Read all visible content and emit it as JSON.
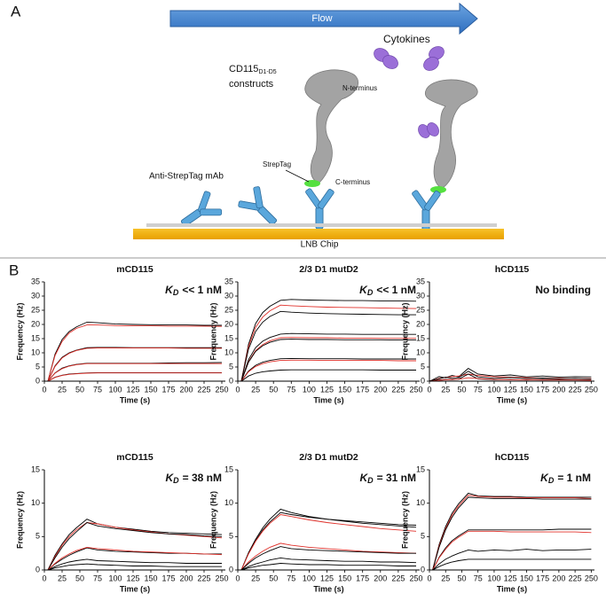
{
  "diagram": {
    "panel_a": "A",
    "panel_b": "B",
    "flow": "Flow",
    "cytokines": "Cytokines",
    "construct_name": "CD115",
    "construct_sub": "D1-D5",
    "constructs": "constructs",
    "n_terminus": "N-terminus",
    "streptag": "StrepTag",
    "c_terminus": "C-terminus",
    "antibody": "Anti-StrepTag mAb",
    "chip": "LNB Chip"
  },
  "chart_data": [
    {
      "type": "line",
      "title": "mCD115",
      "annotation": {
        "symbol": "K",
        "subscript": "D",
        "text": "<< 1 nM"
      },
      "xlabel": "Time (s)",
      "ylabel": "Frequency (Hz)",
      "x": [
        0,
        5,
        15,
        25,
        35,
        45,
        60,
        75,
        100,
        125,
        150,
        175,
        200,
        225,
        250
      ],
      "xlim": [
        0,
        255
      ],
      "xticks": [
        0,
        25,
        50,
        75,
        100,
        125,
        150,
        175,
        200,
        225,
        250
      ],
      "ylim": [
        0,
        35
      ],
      "yticks": [
        0,
        5,
        10,
        15,
        20,
        25,
        30,
        35
      ],
      "series": [
        {
          "color": "#000000",
          "values": [
            0,
            0,
            9.5,
            14.7,
            17.5,
            19.1,
            20.8,
            20.6,
            20.2,
            20,
            19.9,
            19.8,
            19.8,
            19.7,
            19.7
          ]
        },
        {
          "color": "#e0302a",
          "values": [
            0,
            0,
            9,
            14,
            17,
            18.6,
            19.8,
            19.8,
            19.6,
            19.5,
            19.5,
            19.4,
            19.4,
            19.4,
            19.3
          ]
        },
        {
          "color": "#000000",
          "values": [
            0,
            0,
            5.4,
            8.4,
            10,
            10.9,
            11.8,
            11.9,
            11.9,
            11.8,
            11.8,
            11.8,
            11.8,
            11.8,
            11.8
          ]
        },
        {
          "color": "#e0302a",
          "values": [
            0,
            0,
            5.2,
            8.2,
            9.8,
            10.8,
            11.6,
            11.7,
            11.7,
            11.7,
            11.7,
            11.7,
            11.6,
            11.6,
            11.6
          ]
        },
        {
          "color": "#000000",
          "values": [
            0,
            0,
            2.9,
            4.6,
            5.4,
            5.9,
            6.3,
            6.3,
            6.3,
            6.3,
            6.3,
            6.4,
            6.5,
            6.5,
            6.6
          ]
        },
        {
          "color": "#e0302a",
          "values": [
            0,
            0,
            2.8,
            4.4,
            5.3,
            5.8,
            6.2,
            6.2,
            6.2,
            6.2,
            6.2,
            6.2,
            6.2,
            6.2,
            6.2
          ]
        },
        {
          "color": "#000000",
          "values": [
            0,
            0,
            1.4,
            2.1,
            2.5,
            2.7,
            2.9,
            3,
            3,
            3,
            3,
            3,
            3,
            3,
            3
          ]
        },
        {
          "color": "#e0302a",
          "values": [
            0,
            0,
            1.3,
            2,
            2.4,
            2.6,
            2.8,
            2.9,
            2.9,
            2.9,
            2.9,
            2.9,
            2.9,
            2.9,
            2.9
          ]
        }
      ]
    },
    {
      "type": "line",
      "title": "2/3 D1 mutD2",
      "annotation": {
        "symbol": "K",
        "subscript": "D",
        "text": "<< 1 nM"
      },
      "xlabel": "Time (s)",
      "ylabel": "Frequency (Hz)",
      "x": [
        0,
        5,
        15,
        25,
        35,
        45,
        60,
        75,
        100,
        125,
        150,
        175,
        200,
        225,
        250
      ],
      "xlim": [
        0,
        255
      ],
      "xticks": [
        0,
        25,
        50,
        75,
        100,
        125,
        150,
        175,
        200,
        225,
        250
      ],
      "ylim": [
        0,
        35
      ],
      "yticks": [
        0,
        5,
        10,
        15,
        20,
        25,
        30,
        35
      ],
      "series": [
        {
          "color": "#000000",
          "values": [
            0,
            0,
            13,
            20.3,
            24.2,
            26.4,
            28.5,
            28.8,
            28.6,
            28.5,
            28.4,
            28.4,
            28.3,
            28.3,
            28.2
          ]
        },
        {
          "color": "#e0302a",
          "values": [
            0,
            0,
            12.2,
            19,
            22.6,
            24.8,
            26.8,
            26.6,
            26.3,
            26.1,
            26,
            25.9,
            25.8,
            25.7,
            25.6
          ]
        },
        {
          "color": "#000000",
          "values": [
            0,
            0,
            11.3,
            17.5,
            20.8,
            22.8,
            24.6,
            24.3,
            24,
            23.8,
            23.7,
            23.6,
            23.5,
            23.4,
            23.4
          ]
        },
        {
          "color": "#000000",
          "values": [
            0,
            0,
            7.6,
            11.8,
            14.1,
            15.4,
            16.6,
            16.8,
            16.7,
            16.6,
            16.6,
            16.5,
            16.5,
            16.5,
            16.5
          ]
        },
        {
          "color": "#e0302a",
          "values": [
            0,
            0,
            6.9,
            10.8,
            12.9,
            14.2,
            15.3,
            15.4,
            15.3,
            15.3,
            15.2,
            15.2,
            15.1,
            15.1,
            15.1
          ]
        },
        {
          "color": "#000000",
          "values": [
            0,
            0,
            6.7,
            10.5,
            12.5,
            13.7,
            14.7,
            14.8,
            14.7,
            14.7,
            14.6,
            14.6,
            14.6,
            14.5,
            14.5
          ]
        },
        {
          "color": "#000000",
          "values": [
            0,
            0,
            3.6,
            5.6,
            6.7,
            7.3,
            7.9,
            8,
            7.9,
            7.9,
            7.9,
            7.8,
            7.8,
            7.8,
            7.8
          ]
        },
        {
          "color": "#e0302a",
          "values": [
            0,
            0,
            3.3,
            5.2,
            6.2,
            6.8,
            7.3,
            7.4,
            7.4,
            7.3,
            7.3,
            7.3,
            7.3,
            7.2,
            7.2
          ]
        },
        {
          "color": "#000000",
          "values": [
            0,
            0,
            1.8,
            2.8,
            3.3,
            3.6,
            3.9,
            4,
            4,
            4,
            4,
            4,
            3.9,
            3.9,
            3.9
          ]
        }
      ]
    },
    {
      "type": "line",
      "title": "hCD115",
      "annotation": {
        "text": "No binding"
      },
      "xlabel": "Time (s)",
      "ylabel": "Frequency (Hz)",
      "x": [
        0,
        5,
        15,
        25,
        35,
        45,
        60,
        75,
        100,
        125,
        150,
        175,
        200,
        225,
        250
      ],
      "xlim": [
        0,
        255
      ],
      "xticks": [
        0,
        25,
        50,
        75,
        100,
        125,
        150,
        175,
        200,
        225,
        250
      ],
      "ylim": [
        0,
        35
      ],
      "yticks": [
        0,
        5,
        10,
        15,
        20,
        25,
        30,
        35
      ],
      "series": [
        {
          "color": "#000000",
          "values": [
            0,
            0.5,
            1.6,
            1.2,
            2,
            1.5,
            4.5,
            2.5,
            1.8,
            2.2,
            1.5,
            1.8,
            1.4,
            1.6,
            1.5
          ]
        },
        {
          "color": "#e0302a",
          "values": [
            0,
            0.3,
            1,
            1.3,
            1.6,
            1.8,
            2.5,
            2,
            1.6,
            1.4,
            1.2,
            1.1,
            1,
            1,
            0.9
          ]
        },
        {
          "color": "#000000",
          "values": [
            0,
            0.3,
            0.8,
            1.4,
            1,
            1.2,
            3.5,
            1.5,
            1,
            1.3,
            0.9,
            1.1,
            0.8,
            1,
            0.8
          ]
        },
        {
          "color": "#000000",
          "values": [
            0,
            0.2,
            0.4,
            0.6,
            0.5,
            0.7,
            2.5,
            0.8,
            0.5,
            0.6,
            0.4,
            0.6,
            0.5,
            0.5,
            0.4
          ]
        },
        {
          "color": "#e0302a",
          "values": [
            0,
            0.1,
            0.3,
            0.5,
            0.6,
            0.7,
            1.2,
            0.9,
            0.6,
            0.5,
            0.5,
            0.4,
            0.4,
            0.4,
            0.3
          ]
        }
      ]
    },
    {
      "type": "line",
      "title": "mCD115",
      "annotation": {
        "symbol": "K",
        "subscript": "D",
        "text": "= 38 nM"
      },
      "xlabel": "Time (s)",
      "ylabel": "Frequency (Hz)",
      "x": [
        0,
        5,
        15,
        25,
        35,
        45,
        60,
        75,
        100,
        125,
        150,
        175,
        200,
        225,
        250
      ],
      "xlim": [
        0,
        255
      ],
      "xticks": [
        0,
        25,
        50,
        75,
        100,
        125,
        150,
        175,
        200,
        225,
        250
      ],
      "ylim": [
        0,
        15
      ],
      "yticks": [
        0,
        5,
        10,
        15
      ],
      "series": [
        {
          "color": "#000000",
          "values": [
            0,
            0,
            2.2,
            3.9,
            5.3,
            6.3,
            7.6,
            6.9,
            6.4,
            6.1,
            5.8,
            5.6,
            5.5,
            5.4,
            5.3
          ]
        },
        {
          "color": "#e0302a",
          "values": [
            0,
            0,
            2,
            3.7,
            5,
            6,
            7.1,
            6.9,
            6.4,
            6,
            5.7,
            5.4,
            5.2,
            5,
            4.8
          ]
        },
        {
          "color": "#000000",
          "values": [
            0,
            0,
            1.8,
            3.4,
            4.7,
            5.7,
            7.1,
            6.6,
            6.2,
            5.9,
            5.6,
            5.4,
            5.3,
            5.1,
            5
          ]
        },
        {
          "color": "#000000",
          "values": [
            0,
            0,
            0.9,
            1.6,
            2.2,
            2.7,
            3.3,
            3,
            2.8,
            2.7,
            2.6,
            2.5,
            2.5,
            2.4,
            2.4
          ]
        },
        {
          "color": "#e0302a",
          "values": [
            0,
            0,
            1,
            1.8,
            2.4,
            2.9,
            3.4,
            3.2,
            3,
            2.8,
            2.7,
            2.6,
            2.5,
            2.4,
            2.3
          ]
        },
        {
          "color": "#000000",
          "values": [
            0,
            0,
            0.5,
            0.9,
            1.2,
            1.4,
            1.6,
            1.4,
            1.3,
            1.2,
            1.1,
            1.1,
            1,
            1,
            1
          ]
        },
        {
          "color": "#000000",
          "values": [
            0,
            0,
            0.3,
            0.5,
            0.7,
            0.8,
            0.9,
            0.8,
            0.7,
            0.6,
            0.6,
            0.5,
            0.5,
            0.5,
            0.5
          ]
        }
      ]
    },
    {
      "type": "line",
      "title": "2/3 D1 mutD2",
      "annotation": {
        "symbol": "K",
        "subscript": "D",
        "text": "= 31 nM"
      },
      "xlabel": "Time (s)",
      "ylabel": "Frequency (Hz)",
      "x": [
        0,
        5,
        15,
        25,
        35,
        45,
        60,
        75,
        100,
        125,
        150,
        175,
        200,
        225,
        250
      ],
      "xlim": [
        0,
        255
      ],
      "xticks": [
        0,
        25,
        50,
        75,
        100,
        125,
        150,
        175,
        200,
        225,
        250
      ],
      "ylim": [
        0,
        15
      ],
      "yticks": [
        0,
        5,
        10,
        15
      ],
      "series": [
        {
          "color": "#000000",
          "values": [
            0,
            0,
            2.6,
            4.6,
            6.3,
            7.6,
            9.1,
            8.6,
            8,
            7.6,
            7.3,
            7,
            6.8,
            6.6,
            6.4
          ]
        },
        {
          "color": "#000000",
          "values": [
            0,
            0,
            2.5,
            4.4,
            6,
            7.2,
            8.6,
            8.3,
            7.9,
            7.6,
            7.4,
            7.2,
            7,
            6.8,
            6.7
          ]
        },
        {
          "color": "#e0302a",
          "values": [
            0,
            0,
            2.4,
            4.3,
            5.8,
            7,
            8.3,
            8,
            7.5,
            7.1,
            6.8,
            6.5,
            6.2,
            6,
            5.8
          ]
        },
        {
          "color": "#e0302a",
          "values": [
            0,
            0,
            1.2,
            2.1,
            2.8,
            3.4,
            4,
            3.7,
            3.4,
            3.2,
            3,
            2.8,
            2.7,
            2.6,
            2.5
          ]
        },
        {
          "color": "#000000",
          "values": [
            0,
            0,
            1,
            1.8,
            2.4,
            2.9,
            3.5,
            3.2,
            3,
            2.9,
            2.8,
            2.7,
            2.6,
            2.5,
            2.5
          ]
        },
        {
          "color": "#000000",
          "values": [
            0,
            0,
            0.5,
            0.9,
            1.2,
            1.5,
            1.8,
            1.6,
            1.5,
            1.4,
            1.3,
            1.3,
            1.2,
            1.2,
            1.1
          ]
        },
        {
          "color": "#000000",
          "values": [
            0,
            0,
            0.3,
            0.5,
            0.7,
            0.8,
            1,
            0.9,
            0.8,
            0.8,
            0.7,
            0.7,
            0.7,
            0.6,
            0.6
          ]
        }
      ]
    },
    {
      "type": "line",
      "title": "hCD115",
      "annotation": {
        "symbol": "K",
        "subscript": "D",
        "text": "= 1 nM"
      },
      "xlabel": "Time (s)",
      "ylabel": "Frequency (Hz)",
      "x": [
        0,
        5,
        15,
        25,
        35,
        45,
        60,
        75,
        100,
        125,
        150,
        175,
        200,
        225,
        250
      ],
      "xlim": [
        0,
        255
      ],
      "xticks": [
        0,
        25,
        50,
        75,
        100,
        125,
        150,
        175,
        200,
        225,
        250
      ],
      "ylim": [
        0,
        15
      ],
      "yticks": [
        0,
        5,
        10,
        15
      ],
      "series": [
        {
          "color": "#000000",
          "values": [
            0,
            0,
            3.8,
            6.5,
            8.5,
            9.9,
            11.5,
            11.1,
            11,
            11,
            10.9,
            10.9,
            10.9,
            10.9,
            10.9
          ]
        },
        {
          "color": "#e0302a",
          "values": [
            0,
            0,
            3.6,
            6.2,
            8.2,
            9.6,
            11.2,
            11,
            10.9,
            10.9,
            10.8,
            10.8,
            10.8,
            10.8,
            10.7
          ]
        },
        {
          "color": "#000000",
          "values": [
            0,
            0,
            3.4,
            6,
            7.9,
            9.3,
            10.9,
            10.8,
            10.7,
            10.7,
            10.7,
            10.6,
            10.6,
            10.6,
            10.6
          ]
        },
        {
          "color": "#000000",
          "values": [
            0,
            0,
            1.9,
            3.3,
            4.4,
            5.1,
            6,
            6,
            6,
            6,
            6,
            6,
            6.1,
            6.1,
            6.1
          ]
        },
        {
          "color": "#e0302a",
          "values": [
            0,
            0,
            1.8,
            3.1,
            4.2,
            4.9,
            5.8,
            5.8,
            5.8,
            5.7,
            5.7,
            5.7,
            5.7,
            5.7,
            5.6
          ]
        },
        {
          "color": "#000000",
          "values": [
            0,
            0,
            0.9,
            1.6,
            2.1,
            2.5,
            3,
            2.8,
            3,
            2.9,
            3.1,
            2.9,
            3,
            3,
            3.1
          ]
        },
        {
          "color": "#000000",
          "values": [
            0,
            0,
            0.5,
            0.9,
            1.2,
            1.4,
            1.6,
            1.6,
            1.6,
            1.6,
            1.6,
            1.6,
            1.6,
            1.6,
            1.6
          ]
        }
      ]
    }
  ]
}
